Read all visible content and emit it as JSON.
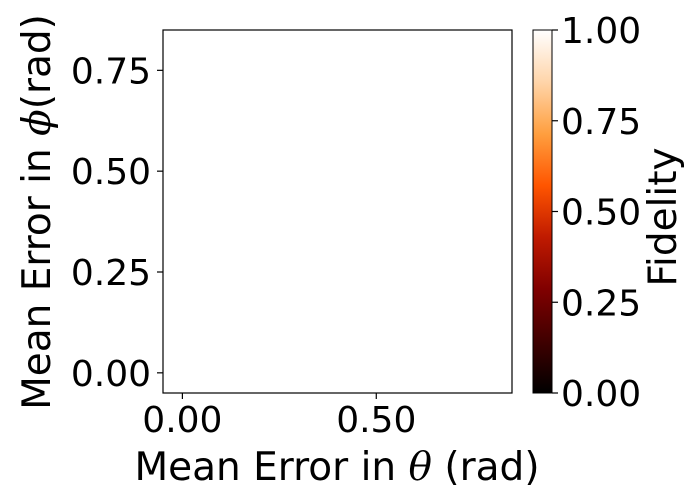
{
  "chart_data": {
    "type": "heatmap",
    "x": [],
    "y": [],
    "values": [],
    "xlabel": {
      "prefix": "Mean Error in ",
      "symbol": "θ",
      "suffix": " (rad)"
    },
    "ylabel": {
      "prefix": "Mean Error in ",
      "symbol": "ϕ",
      "suffix": "(rad)"
    },
    "xlim": [
      -0.05,
      0.85
    ],
    "ylim": [
      -0.05,
      0.85
    ],
    "x_ticks": [
      0.0,
      0.5
    ],
    "x_tick_labels": [
      "0.00",
      "0.50"
    ],
    "y_ticks": [
      0.0,
      0.25,
      0.5,
      0.75
    ],
    "y_tick_labels": [
      "0.00",
      "0.25",
      "0.50",
      "0.75"
    ],
    "grid": false,
    "colorbar": {
      "label": "Fidelity",
      "range": [
        0.0,
        1.0
      ],
      "ticks": [
        0.0,
        0.25,
        0.5,
        0.75,
        1.0
      ],
      "tick_labels": [
        "0.00",
        "0.25",
        "0.50",
        "0.75",
        "1.00"
      ],
      "colormap": "gist_heat",
      "color_stops": [
        "#000000",
        "#400000",
        "#800000",
        "#bf1a00",
        "#ff5500",
        "#ff9f3f",
        "#ffd5aa",
        "#ffffff"
      ]
    },
    "plot_background": "#ffffff"
  }
}
